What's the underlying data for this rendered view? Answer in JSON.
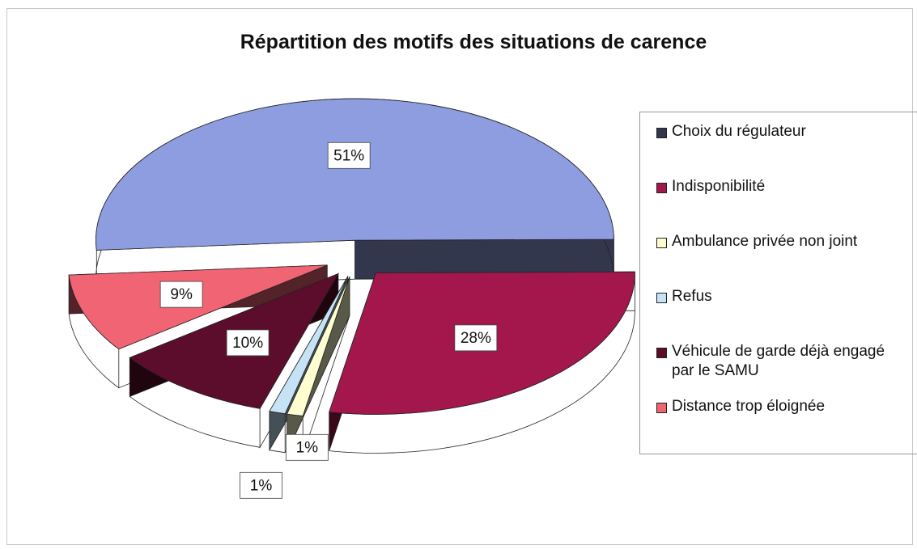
{
  "chart_data": {
    "type": "pie",
    "title": "Répartition des motifs des situations de carence",
    "categories": [
      "Choix du régulateur",
      "Indisponibilité",
      "Ambulance privée non joint",
      "Refus",
      "Véhicule de garde déjà engagé par le SAMU",
      "Distance trop éloignée"
    ],
    "values": [
      51,
      28,
      1,
      1,
      10,
      9
    ],
    "value_labels": [
      "51%",
      "28%",
      "1%",
      "1%",
      "10%",
      "9%"
    ],
    "colors": [
      "#8e9de0",
      "#a3174d",
      "#fffed0",
      "#c6e3f6",
      "#5c0d2c",
      "#f06474"
    ],
    "legend": "right"
  }
}
